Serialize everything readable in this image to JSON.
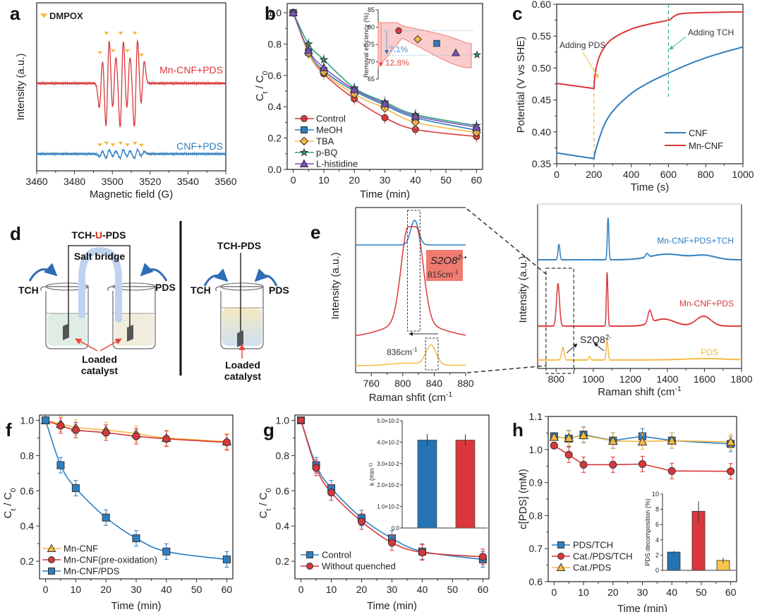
{
  "figure_labels": [
    "a",
    "b",
    "c",
    "d",
    "e",
    "f",
    "g",
    "h"
  ],
  "chart_data": [
    {
      "id": "a",
      "type": "line",
      "title": "",
      "xlabel": "Magnetic field (G)",
      "ylabel": "Intensity (a.u.)",
      "xlim": [
        3460,
        3560
      ],
      "xticks": [
        3460,
        3480,
        3500,
        3520,
        3540,
        3560
      ],
      "legend": [
        {
          "label": "DMPOX",
          "marker": "triangle-down",
          "color": "#F5B942"
        }
      ],
      "series": [
        {
          "name": "Mn-CNF+PDS",
          "color": "#D9373C",
          "peaks_G": [
            3494,
            3497.5,
            3501,
            3505,
            3508.5,
            3512.5,
            3516
          ],
          "relative_amplitude": [
            0.55,
            1.0,
            0.6,
            1.0,
            0.6,
            1.0,
            0.5
          ]
        },
        {
          "name": "CNF+PDS",
          "color": "#2E7EC0",
          "peaks_G": [
            3494,
            3497.5,
            3501,
            3505,
            3508.5,
            3512.5,
            3516
          ],
          "relative_amplitude": [
            0.06,
            0.1,
            0.06,
            0.1,
            0.06,
            0.1,
            0.05
          ]
        }
      ]
    },
    {
      "id": "b",
      "type": "line",
      "xlabel": "Time (min)",
      "ylabel": "Ct / C0",
      "xlim": [
        -2,
        62
      ],
      "ylim": [
        0,
        1.0
      ],
      "xticks": [
        0,
        10,
        20,
        30,
        40,
        50,
        60
      ],
      "yticks": [
        0.0,
        0.2,
        0.4,
        0.6,
        0.8,
        1.0
      ],
      "legend_position": "bottom-left",
      "x": [
        0,
        5,
        10,
        20,
        30,
        40,
        60
      ],
      "series": [
        {
          "name": "Control",
          "marker": "circle",
          "color": "#D9373C",
          "values": [
            1.0,
            0.74,
            0.61,
            0.45,
            0.33,
            0.255,
            0.21
          ]
        },
        {
          "name": "MeOH",
          "marker": "square",
          "color": "#2E7EC0",
          "values": [
            1.0,
            0.75,
            0.63,
            0.5,
            0.41,
            0.33,
            0.25
          ]
        },
        {
          "name": "TBA",
          "marker": "diamond",
          "color": "#F5B942",
          "values": [
            1.0,
            0.74,
            0.62,
            0.48,
            0.39,
            0.3,
            0.235
          ]
        },
        {
          "name": "p-BQ",
          "marker": "star",
          "color": "#2AA57A",
          "values": [
            1.0,
            0.8,
            0.7,
            0.52,
            0.43,
            0.35,
            0.28
          ]
        },
        {
          "name": "L-histidine",
          "marker": "triangle",
          "color": "#7B4FBF",
          "values": [
            1.0,
            0.76,
            0.65,
            0.51,
            0.42,
            0.34,
            0.27
          ]
        }
      ],
      "inset": {
        "ylabel": "Removal efficiency (%)",
        "ylim": [
          65,
          85
        ],
        "yticks": [
          65,
          70,
          75,
          80,
          85
        ],
        "points": [
          {
            "name": "Control",
            "value": 79.0
          },
          {
            "name": "TBA",
            "value": 76.5
          },
          {
            "name": "MeOH",
            "value": 75.3
          },
          {
            "name": "L-histidine",
            "value": 72.6
          },
          {
            "name": "p-BQ",
            "value": 72.0
          }
        ],
        "annotations": [
          "7.1%",
          "12.8%"
        ]
      }
    },
    {
      "id": "c",
      "type": "line",
      "xlabel": "Time (s)",
      "ylabel": "Potential (V vs SHE)",
      "xlim": [
        0,
        1000
      ],
      "ylim": [
        0.35,
        0.6
      ],
      "xticks": [
        0,
        200,
        400,
        600,
        800,
        1000
      ],
      "yticks": [
        0.35,
        0.4,
        0.45,
        0.5,
        0.55,
        0.6
      ],
      "legend_position": "bottom-right",
      "annotations": [
        {
          "text": "Adding PDS",
          "x": 200
        },
        {
          "text": "Adding TCH",
          "x": 600
        }
      ],
      "series": [
        {
          "name": "CNF",
          "color": "#2E7EC0",
          "x": [
            0,
            200,
            210,
            250,
            300,
            400,
            500,
            600,
            700,
            800,
            900,
            1000
          ],
          "values": [
            0.367,
            0.358,
            0.372,
            0.407,
            0.432,
            0.46,
            0.478,
            0.492,
            0.505,
            0.516,
            0.525,
            0.533
          ]
        },
        {
          "name": "Mn-CNF",
          "color": "#D9373C",
          "x": [
            0,
            200,
            205,
            220,
            250,
            300,
            400,
            500,
            600,
            620,
            650,
            700,
            800,
            1000
          ],
          "values": [
            0.476,
            0.468,
            0.487,
            0.51,
            0.53,
            0.546,
            0.561,
            0.569,
            0.575,
            0.579,
            0.584,
            0.586,
            0.587,
            0.588
          ]
        }
      ]
    },
    {
      "id": "e-zoom",
      "type": "line",
      "xlabel": "Raman shfit (cm-1)",
      "ylabel": "Intensity (a.u.)",
      "xlim": [
        740,
        880
      ],
      "xticks": [
        760,
        800,
        840,
        880
      ],
      "annotations": [
        {
          "text": "S2O8 2-*",
          "sub": "815cm-1"
        },
        {
          "text": "836cm-1"
        }
      ],
      "series": [
        {
          "name": "Mn-CNF+PDS+TCH",
          "color": "#2E7EC0",
          "peak": 815
        },
        {
          "name": "Mn-CNF+PDS",
          "color": "#D9373C",
          "peak": 810
        },
        {
          "name": "PDS",
          "color": "#F5B942",
          "peak": 836
        }
      ]
    },
    {
      "id": "e",
      "type": "line",
      "xlabel": "Raman shift (cm-1)",
      "ylabel": "Intensity (a.u.)",
      "xlim": [
        700,
        1800
      ],
      "xticks": [
        800,
        1000,
        1200,
        1400,
        1600,
        1800
      ],
      "annotations": [
        {
          "text": "S2O8 2-"
        }
      ],
      "series": [
        {
          "name": "Mn-CNF+PDS+TCH",
          "color": "#2E7EC0",
          "peaks": [
            815,
            1080,
            1290,
            1600
          ]
        },
        {
          "name": "Mn-CNF+PDS",
          "color": "#D9373C",
          "peaks": [
            810,
            1075,
            1305,
            1595
          ]
        },
        {
          "name": "PDS",
          "color": "#F5B942",
          "peaks": [
            836,
            980,
            1075
          ]
        }
      ]
    },
    {
      "id": "f",
      "type": "line",
      "xlabel": "Time (min)",
      "ylabel": "Ct / C0",
      "xlim": [
        -2,
        62
      ],
      "ylim": [
        0.1,
        1.03
      ],
      "xticks": [
        0,
        10,
        20,
        30,
        40,
        50,
        60
      ],
      "yticks": [
        0.2,
        0.4,
        0.6,
        0.8,
        1.0
      ],
      "legend_position": "bottom-left",
      "x": [
        0,
        5,
        10,
        20,
        30,
        40,
        60
      ],
      "series": [
        {
          "name": "Mn-CNF",
          "marker": "triangle",
          "color": "#F5B942",
          "values": [
            1.0,
            0.98,
            0.96,
            0.945,
            0.925,
            0.9,
            0.88
          ]
        },
        {
          "name": "Mn-CNF(pre-oxidation)",
          "marker": "circle",
          "color": "#D9373C",
          "values": [
            1.0,
            0.97,
            0.945,
            0.93,
            0.91,
            0.895,
            0.875
          ]
        },
        {
          "name": "Mn-CNF/PDS",
          "marker": "square",
          "color": "#2E7EC0",
          "values": [
            1.0,
            0.745,
            0.615,
            0.448,
            0.33,
            0.255,
            0.21
          ]
        }
      ]
    },
    {
      "id": "g",
      "type": "line",
      "xlabel": "Time (min)",
      "ylabel": "Ct / C0",
      "xlim": [
        -2,
        62
      ],
      "ylim": [
        0.1,
        1.03
      ],
      "xticks": [
        0,
        10,
        20,
        30,
        40,
        50,
        60
      ],
      "yticks": [
        0.2,
        0.4,
        0.6,
        0.8,
        1.0
      ],
      "legend_position": "bottom-left",
      "x": [
        0,
        5,
        10,
        20,
        30,
        40,
        60
      ],
      "series": [
        {
          "name": "Control",
          "marker": "square",
          "color": "#2E7EC0",
          "values": [
            1.0,
            0.745,
            0.615,
            0.445,
            0.33,
            0.255,
            0.21
          ]
        },
        {
          "name": "Without quenched",
          "marker": "circle",
          "color": "#D9373C",
          "values": [
            1.0,
            0.73,
            0.59,
            0.425,
            0.305,
            0.25,
            0.225
          ]
        }
      ],
      "inset": {
        "type": "bar",
        "ylabel": "k (min-1)",
        "ylim": [
          0,
          0.05
        ],
        "ytick_labels": [
          "0.0",
          "1.0×10-2",
          "2.0×10-2",
          "3.0×10-2",
          "4.0×10-2",
          "5.0×10-2"
        ],
        "categories": [
          "Control",
          "Without quenched"
        ],
        "values": [
          0.041,
          0.041
        ],
        "errors": [
          0.0028,
          0.0026
        ],
        "colors": [
          "#2473B5",
          "#D9373C"
        ]
      }
    },
    {
      "id": "h",
      "type": "line",
      "xlabel": "Time (min)",
      "ylabel": "c[PDS] (mM)",
      "xlim": [
        -2,
        62
      ],
      "ylim": [
        0.6,
        1.1
      ],
      "xticks": [
        0,
        10,
        20,
        30,
        40,
        50,
        60
      ],
      "yticks": [
        0.6,
        0.7,
        0.8,
        0.9,
        1.0,
        1.1
      ],
      "legend_position": "bottom-left",
      "x": [
        0,
        5,
        10,
        20,
        30,
        40,
        60
      ],
      "series": [
        {
          "name": "PDS/TCH",
          "marker": "square",
          "color": "#2E7EC0",
          "values": [
            1.04,
            1.033,
            1.045,
            1.027,
            1.04,
            1.027,
            1.017
          ]
        },
        {
          "name": "Cat./PDS/TCH",
          "marker": "circle",
          "color": "#D9373C",
          "values": [
            1.012,
            0.984,
            0.954,
            0.954,
            0.956,
            0.935,
            0.934
          ]
        },
        {
          "name": "Cat./PDS",
          "marker": "triangle",
          "color": "#F5B942",
          "values": [
            1.038,
            1.035,
            1.043,
            1.026,
            1.024,
            1.027,
            1.023
          ]
        }
      ],
      "inset": {
        "type": "bar",
        "ylabel": "PDS decomposition (%)",
        "ylim": [
          0,
          10
        ],
        "yticks": [
          0,
          2,
          4,
          6,
          8,
          10
        ],
        "categories": [
          "PDS/TCH",
          "Cat./PDS/TCH",
          "Cat./PDS"
        ],
        "values": [
          2.4,
          7.75,
          1.3
        ],
        "errors": [
          0.15,
          1.35,
          0.35
        ],
        "colors": [
          "#2473B5",
          "#D9373C",
          "#F7C64B"
        ]
      }
    }
  ],
  "diagram_d": {
    "left_title_parts": [
      "TCH-",
      "U",
      "-PDS"
    ],
    "salt_bridge": "Salt bridge",
    "tch": "TCH",
    "pds": "PDS",
    "loaded_1": "Loaded",
    "loaded_2": "catalyst",
    "right_title": "TCH-PDS"
  },
  "panel_e_labels": {
    "box_formula": "S2O8",
    "box_sup": "2-•",
    "box_value": "815cm",
    "box_value_sup": "-1",
    "pds_peak": "836cm",
    "pds_peak_sup": "-1",
    "right_anno": "S2O8",
    "right_anno_sup": "2-"
  }
}
